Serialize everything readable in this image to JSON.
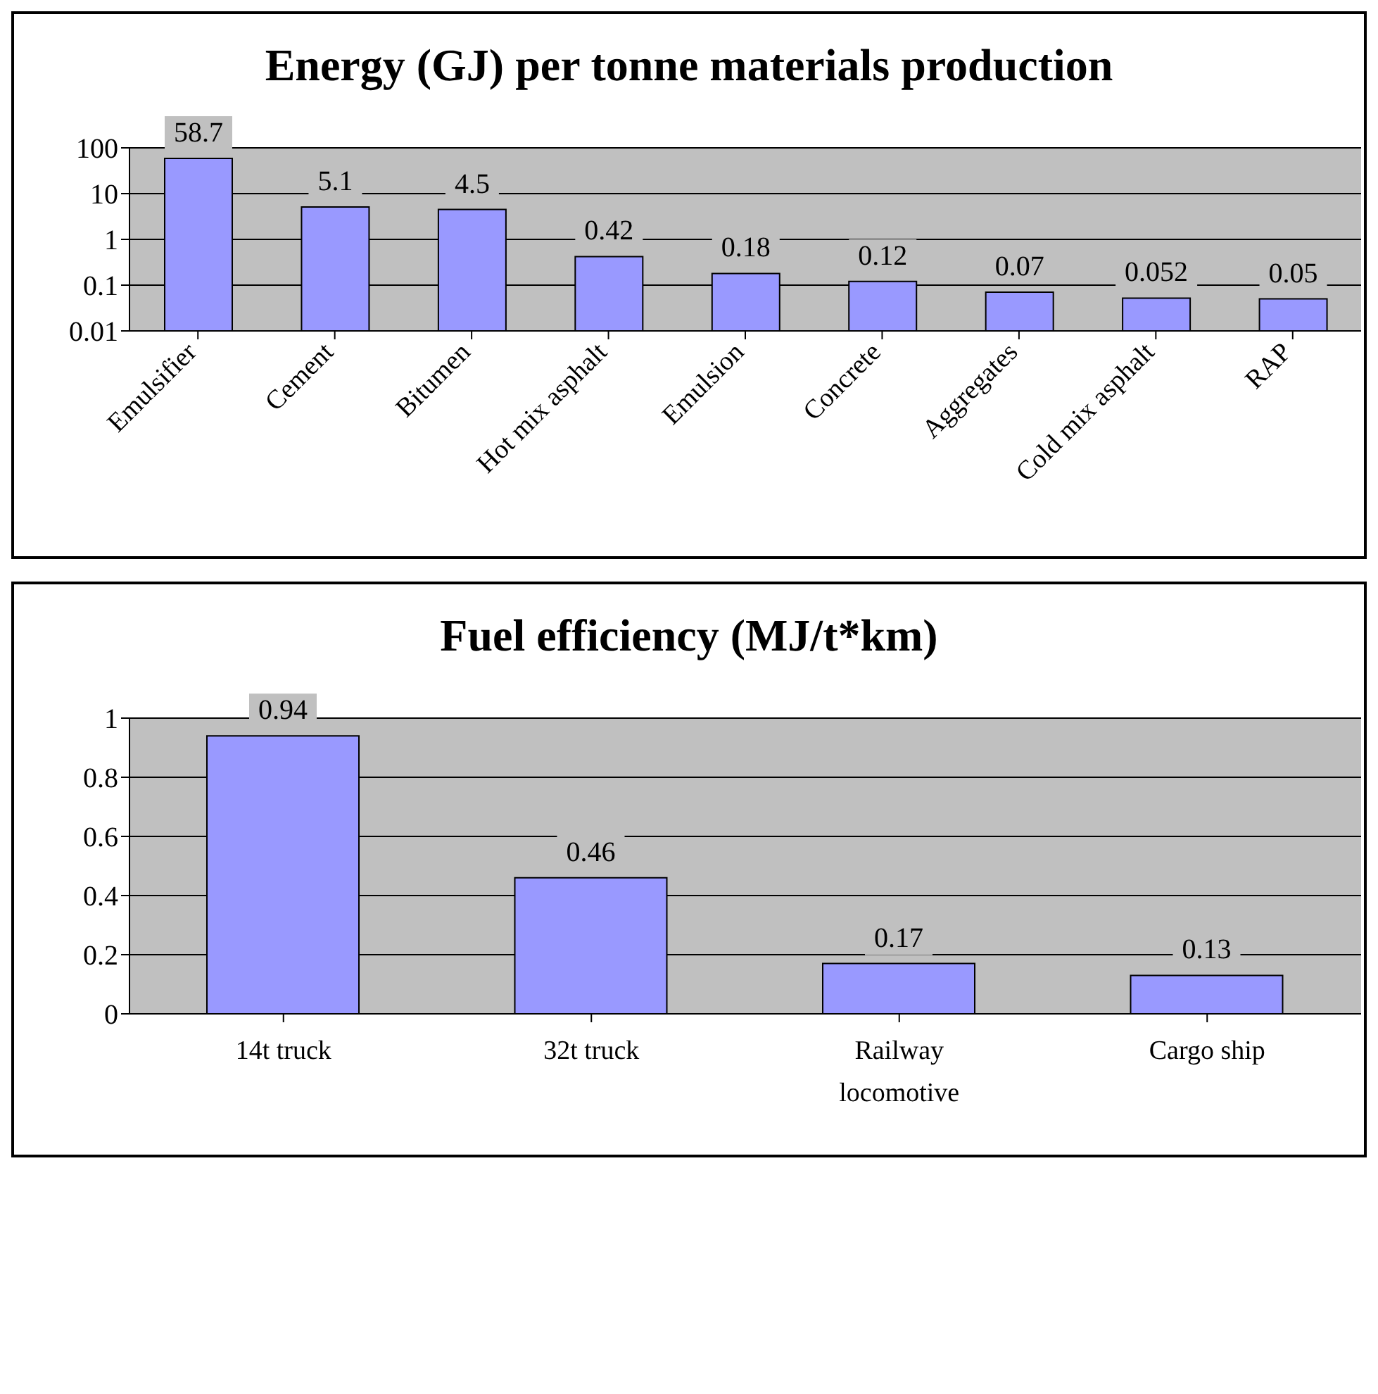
{
  "chart_data": [
    {
      "type": "bar",
      "title": "Energy (GJ) per tonne materials production",
      "categories": [
        "Emulsifier",
        "Cement",
        "Bitumen",
        "Hot mix asphalt",
        "Emulsion",
        "Concrete",
        "Aggregates",
        "Cold mix asphalt",
        "RAP"
      ],
      "values": [
        58.7,
        5.1,
        4.5,
        0.42,
        0.18,
        0.12,
        0.07,
        0.052,
        0.05
      ],
      "color": "#9999ff",
      "log": true,
      "ylim": [
        0.01,
        100
      ],
      "yticks": [
        0.01,
        0.1,
        1,
        10,
        100
      ],
      "grid": "y",
      "data_labels": true
    },
    {
      "type": "bar",
      "title": "Fuel efficiency (MJ/t*km)",
      "categories": [
        "14t truck",
        "32t truck",
        "Railway locomotive",
        "Cargo ship"
      ],
      "values": [
        0.94,
        0.46,
        0.17,
        0.13
      ],
      "color": "#9999ff",
      "ylim": [
        0,
        1
      ],
      "yticks": [
        0,
        0.2,
        0.4,
        0.6,
        0.8,
        1
      ],
      "grid": "y",
      "data_labels": true
    }
  ]
}
